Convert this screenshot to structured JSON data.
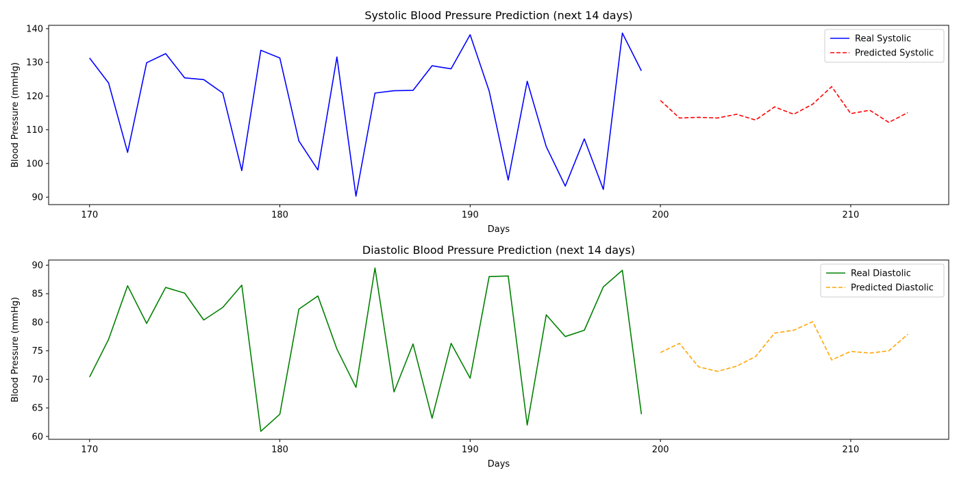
{
  "chart_data": [
    {
      "type": "line",
      "title": "Systolic Blood Pressure Prediction (next 14 days)",
      "xlabel": "Days",
      "ylabel": "Blood Pressure (mmHg)",
      "xlim": [
        167.85,
        215.15
      ],
      "ylim": [
        87.8,
        141.0
      ],
      "xticks": [
        170,
        180,
        190,
        200,
        210
      ],
      "yticks": [
        90,
        100,
        110,
        120,
        130,
        140
      ],
      "legend": "top-right",
      "series": [
        {
          "name": "Real Systolic",
          "color": "#0000ff",
          "style": "solid",
          "x": [
            170,
            171,
            172,
            173,
            174,
            175,
            176,
            177,
            178,
            179,
            180,
            181,
            182,
            183,
            184,
            185,
            186,
            187,
            188,
            189,
            190,
            191,
            192,
            193,
            194,
            195,
            196,
            197,
            198,
            199
          ],
          "y": [
            131.3,
            123.9,
            103.3,
            129.9,
            132.6,
            125.4,
            124.9,
            120.9,
            97.9,
            133.6,
            131.3,
            106.7,
            98.1,
            131.6,
            90.3,
            120.9,
            121.6,
            121.7,
            129.0,
            128.1,
            138.2,
            121.5,
            95.1,
            124.4,
            105.0,
            93.3,
            107.3,
            92.3,
            138.7,
            127.5
          ]
        },
        {
          "name": "Predicted Systolic",
          "color": "#ff0000",
          "style": "dashed",
          "x": [
            200,
            201,
            202,
            203,
            204,
            205,
            206,
            207,
            208,
            209,
            210,
            211,
            212,
            213
          ],
          "y": [
            118.7,
            113.5,
            113.7,
            113.5,
            114.6,
            112.9,
            116.8,
            114.6,
            117.6,
            122.8,
            114.8,
            115.8,
            112.2,
            115.1
          ]
        }
      ]
    },
    {
      "type": "line",
      "title": "Diastolic Blood Pressure Prediction (next 14 days)",
      "xlabel": "Days",
      "ylabel": "Blood Pressure (mmHg)",
      "xlim": [
        167.85,
        215.15
      ],
      "ylim": [
        59.5,
        90.9
      ],
      "xticks": [
        170,
        180,
        190,
        200,
        210
      ],
      "yticks": [
        60,
        65,
        70,
        75,
        80,
        85,
        90
      ],
      "legend": "top-right",
      "series": [
        {
          "name": "Real Diastolic",
          "color": "#008000",
          "style": "solid",
          "x": [
            170,
            171,
            172,
            173,
            174,
            175,
            176,
            177,
            178,
            179,
            180,
            181,
            182,
            183,
            184,
            185,
            186,
            187,
            188,
            189,
            190,
            191,
            192,
            193,
            194,
            195,
            196,
            197,
            198,
            199
          ],
          "y": [
            70.4,
            77.0,
            86.4,
            79.8,
            86.1,
            85.1,
            80.4,
            82.6,
            86.5,
            60.9,
            63.9,
            82.3,
            84.6,
            75.3,
            68.6,
            89.5,
            67.8,
            76.2,
            63.2,
            76.3,
            70.2,
            88.0,
            88.1,
            62.0,
            81.3,
            77.5,
            78.6,
            86.2,
            89.1,
            63.9
          ]
        },
        {
          "name": "Predicted Diastolic",
          "color": "#ffa500",
          "style": "dashed",
          "x": [
            200,
            201,
            202,
            203,
            204,
            205,
            206,
            207,
            208,
            209,
            210,
            211,
            212,
            213
          ],
          "y": [
            74.7,
            76.3,
            72.2,
            71.4,
            72.3,
            74.0,
            78.1,
            78.6,
            80.1,
            73.4,
            74.9,
            74.6,
            75.0,
            77.9
          ]
        }
      ]
    }
  ]
}
